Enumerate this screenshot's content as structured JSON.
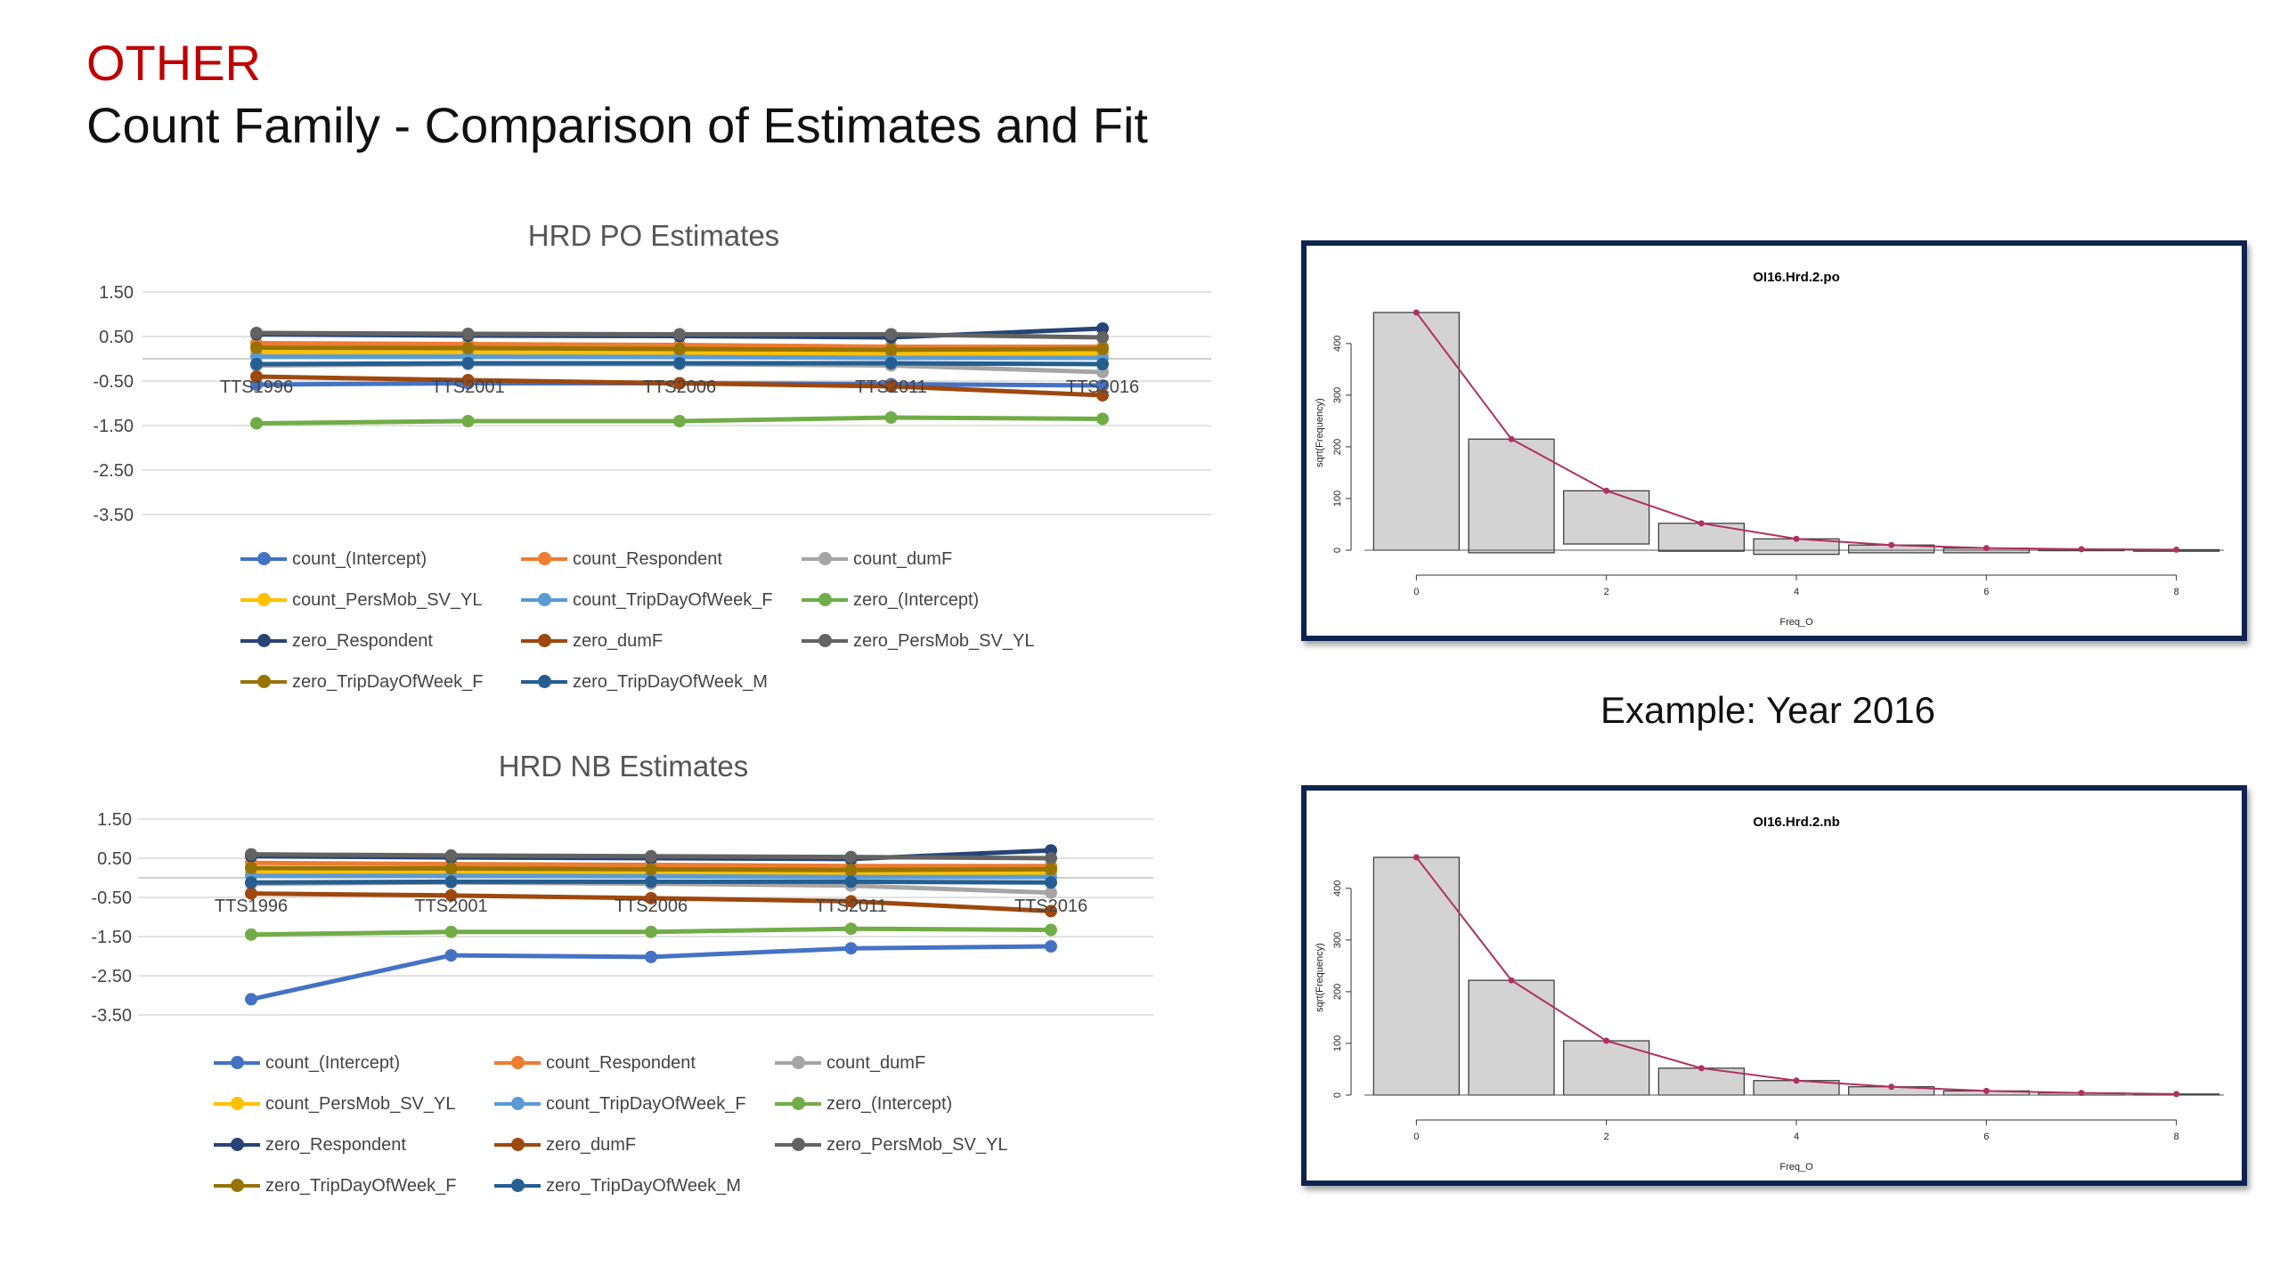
{
  "slide": {
    "title": "OTHER",
    "subtitle": "Count Family - Comparison of Estimates and Fit",
    "caption": "Example: Year 2016"
  },
  "chart_data": [
    {
      "type": "line",
      "title": "HRD PO Estimates",
      "categories": [
        "TTS1996",
        "TTS2001",
        "TTS2006",
        "TTS2011",
        "TTS2016"
      ],
      "yticks": [
        "1.50",
        "0.50",
        "-0.50",
        "-1.50",
        "-2.50",
        "-3.50"
      ],
      "ylim": [
        -3.5,
        1.5
      ],
      "legend_position": "bottom",
      "series": [
        {
          "name": "count_(Intercept)",
          "color": "#4472c4",
          "values": [
            -0.58,
            -0.55,
            -0.55,
            -0.57,
            -0.6
          ]
        },
        {
          "name": "count_Respondent",
          "color": "#ed7d31",
          "values": [
            0.35,
            0.33,
            0.31,
            0.27,
            0.27
          ]
        },
        {
          "name": "count_dumF",
          "color": "#a5a5a5",
          "values": [
            -0.15,
            -0.12,
            -0.12,
            -0.15,
            -0.3
          ]
        },
        {
          "name": "count_PersMob_SV_YL",
          "color": "#ffc000",
          "values": [
            0.15,
            0.14,
            0.13,
            0.1,
            0.12
          ]
        },
        {
          "name": "count_TripDayOfWeek_F",
          "color": "#5b9bd5",
          "values": [
            0.05,
            0.05,
            0.04,
            0.02,
            0.02
          ]
        },
        {
          "name": "zero_(Intercept)",
          "color": "#70ad47",
          "values": [
            -1.45,
            -1.4,
            -1.4,
            -1.32,
            -1.35
          ]
        },
        {
          "name": "zero_Respondent",
          "color": "#264478",
          "values": [
            0.55,
            0.52,
            0.51,
            0.48,
            0.68
          ]
        },
        {
          "name": "zero_dumF",
          "color": "#9e480e",
          "values": [
            -0.4,
            -0.48,
            -0.55,
            -0.62,
            -0.82
          ]
        },
        {
          "name": "zero_PersMob_SV_YL",
          "color": "#636363",
          "values": [
            0.58,
            0.56,
            0.55,
            0.55,
            0.48
          ]
        },
        {
          "name": "zero_TripDayOfWeek_F",
          "color": "#997300",
          "values": [
            0.25,
            0.24,
            0.22,
            0.2,
            0.22
          ]
        },
        {
          "name": "zero_TripDayOfWeek_M",
          "color": "#255e91",
          "values": [
            -0.12,
            -0.1,
            -0.1,
            -0.1,
            -0.12
          ]
        }
      ]
    },
    {
      "type": "line",
      "title": "HRD NB Estimates",
      "categories": [
        "TTS1996",
        "TTS2001",
        "TTS2006",
        "TTS2011",
        "TTS2016"
      ],
      "yticks": [
        "1.50",
        "0.50",
        "-0.50",
        "-1.50",
        "-2.50",
        "-3.50"
      ],
      "ylim": [
        -3.5,
        1.5
      ],
      "legend_position": "bottom",
      "series": [
        {
          "name": "count_(Intercept)",
          "color": "#4472c4",
          "values": [
            -3.1,
            -1.98,
            -2.02,
            -1.8,
            -1.75
          ]
        },
        {
          "name": "count_Respondent",
          "color": "#ed7d31",
          "values": [
            0.38,
            0.35,
            0.33,
            0.3,
            0.3
          ]
        },
        {
          "name": "count_dumF",
          "color": "#a5a5a5",
          "values": [
            -0.15,
            -0.12,
            -0.15,
            -0.2,
            -0.38
          ]
        },
        {
          "name": "count_PersMob_SV_YL",
          "color": "#ffc000",
          "values": [
            0.15,
            0.15,
            0.14,
            0.1,
            0.12
          ]
        },
        {
          "name": "count_TripDayOfWeek_F",
          "color": "#5b9bd5",
          "values": [
            0.05,
            0.05,
            0.04,
            0.02,
            0.02
          ]
        },
        {
          "name": "zero_(Intercept)",
          "color": "#70ad47",
          "values": [
            -1.45,
            -1.38,
            -1.38,
            -1.3,
            -1.33
          ]
        },
        {
          "name": "zero_Respondent",
          "color": "#264478",
          "values": [
            0.55,
            0.52,
            0.5,
            0.48,
            0.7
          ]
        },
        {
          "name": "zero_dumF",
          "color": "#9e480e",
          "values": [
            -0.4,
            -0.45,
            -0.52,
            -0.6,
            -0.85
          ]
        },
        {
          "name": "zero_PersMob_SV_YL",
          "color": "#636363",
          "values": [
            0.6,
            0.57,
            0.55,
            0.53,
            0.5
          ]
        },
        {
          "name": "zero_TripDayOfWeek_F",
          "color": "#997300",
          "values": [
            0.25,
            0.24,
            0.22,
            0.2,
            0.22
          ]
        },
        {
          "name": "zero_TripDayOfWeek_M",
          "color": "#255e91",
          "values": [
            -0.12,
            -0.1,
            -0.1,
            -0.1,
            -0.12
          ]
        }
      ]
    },
    {
      "type": "bar",
      "title": "OI16.Hrd.2.po",
      "xlabel": "Freq_O",
      "ylabel": "sqrt(Frequency)",
      "x_ticks": [
        "0",
        "2",
        "4",
        "6",
        "8"
      ],
      "y_ticks": [
        "0",
        "100",
        "200",
        "300",
        "400"
      ],
      "xlim": [
        -0.5,
        8.5
      ],
      "ylim": [
        0,
        460
      ],
      "x": [
        0,
        1,
        2,
        3,
        4,
        5,
        6,
        7,
        8
      ],
      "bar_top": [
        460,
        215,
        115,
        52,
        22,
        10,
        4,
        2,
        1
      ],
      "bar_bottom": [
        0,
        -5,
        12,
        -2,
        -8,
        -5,
        -5,
        -1,
        -2
      ],
      "expected": [
        460,
        215,
        115,
        52,
        22,
        10,
        4,
        2,
        1
      ]
    },
    {
      "type": "bar",
      "title": "OI16.Hrd.2.nb",
      "xlabel": "Freq_O",
      "ylabel": "sqrt(Frequency)",
      "x_ticks": [
        "0",
        "2",
        "4",
        "6",
        "8"
      ],
      "y_ticks": [
        "0",
        "100",
        "200",
        "300",
        "400"
      ],
      "xlim": [
        -0.5,
        8.5
      ],
      "ylim": [
        0,
        460
      ],
      "x": [
        0,
        1,
        2,
        3,
        4,
        5,
        6,
        7,
        8
      ],
      "bar_top": [
        460,
        222,
        105,
        52,
        28,
        16,
        8,
        4,
        2
      ],
      "bar_bottom": [
        0,
        0,
        0,
        0,
        0,
        0,
        0,
        0,
        0
      ],
      "expected": [
        460,
        222,
        105,
        52,
        28,
        16,
        8,
        4,
        2
      ]
    }
  ]
}
